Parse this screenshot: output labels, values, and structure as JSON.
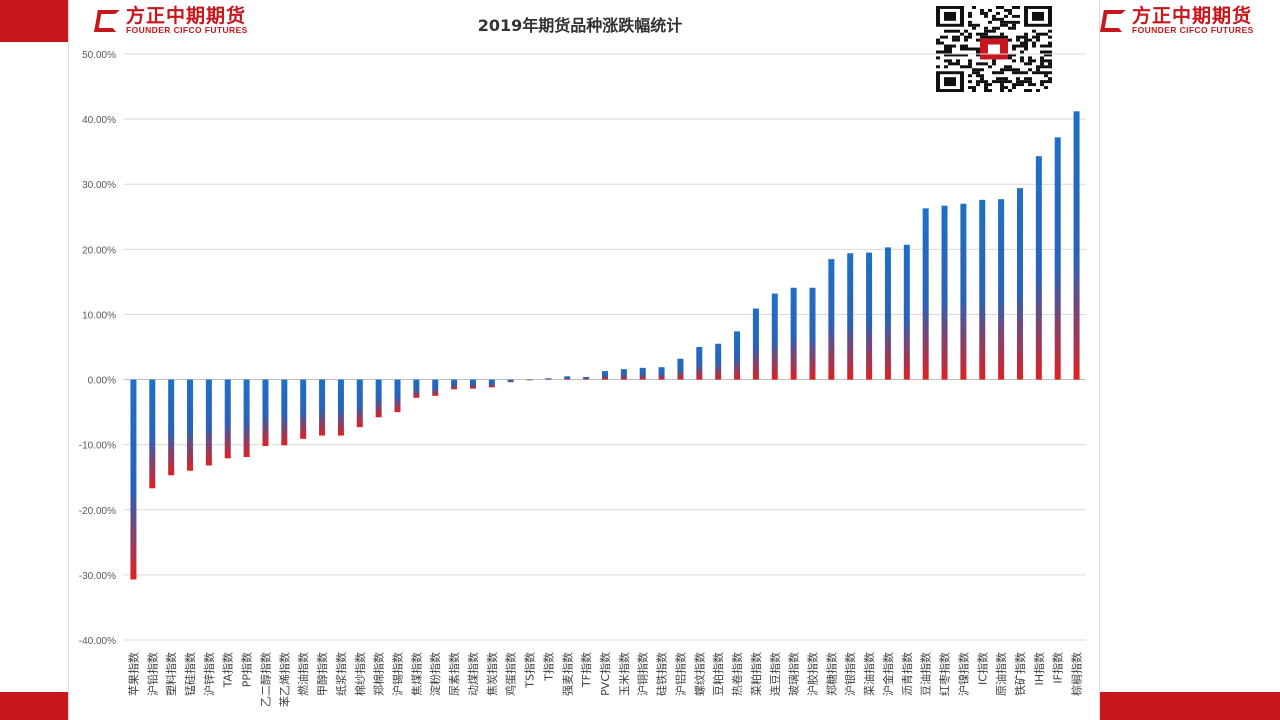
{
  "brand": {
    "name_cn": "方正中期期货",
    "name_en": "FOUNDER CIFCO FUTURES",
    "color": "#c8161d"
  },
  "qr_code": {
    "icon": "qr-code-icon"
  },
  "chart_data": {
    "type": "bar",
    "title": "2019年期货品种涨跌幅统计",
    "xlabel": "",
    "ylabel": "",
    "ylim": [
      -0.4,
      0.5
    ],
    "yticks": [
      0.5,
      0.4,
      0.3,
      0.2,
      0.1,
      0.0,
      -0.1,
      -0.2,
      -0.3,
      -0.4
    ],
    "ytick_labels": [
      "50.00%",
      "40.00%",
      "30.00%",
      "20.00%",
      "10.00%",
      "0.00%",
      "-10.00%",
      "-20.00%",
      "-30.00%",
      "-40.00%"
    ],
    "grid": true,
    "gradient_colors": {
      "positive_top": "#1f6fc6",
      "positive_base": "#e02020",
      "negative_top": "#1f6fc6",
      "negative_end": "#e02020"
    },
    "categories": [
      "苹果指数",
      "沪铅指数",
      "塑料指数",
      "锰硅指数",
      "沪锌指数",
      "TA指数",
      "PP指数",
      "乙二醇指数",
      "苯乙烯指数",
      "燃油指数",
      "甲醇指数",
      "纸浆指数",
      "棉纱指数",
      "郑棉指数",
      "沪锡指数",
      "焦煤指数",
      "淀粉指数",
      "尿素指数",
      "动煤指数",
      "焦炭指数",
      "鸡蛋指数",
      "TS指数",
      "T指数",
      "强麦指数",
      "TF指数",
      "PVC指数",
      "玉米指数",
      "沪铜指数",
      "硅铁指数",
      "沪铝指数",
      "螺纹指数",
      "豆粕指数",
      "热卷指数",
      "菜粕指数",
      "连豆指数",
      "玻璃指数",
      "沪胶指数",
      "郑糖指数",
      "沪银指数",
      "菜油指数",
      "沪金指数",
      "沥青指数",
      "豆油指数",
      "红枣指数",
      "沪镍指数",
      "IC指数",
      "原油指数",
      "铁矿指数",
      "IH指数",
      "IF指数",
      "棕榈指数"
    ],
    "values": [
      -0.307,
      -0.167,
      -0.147,
      -0.14,
      -0.132,
      -0.121,
      -0.119,
      -0.102,
      -0.101,
      -0.091,
      -0.086,
      -0.086,
      -0.073,
      -0.058,
      -0.05,
      -0.028,
      -0.025,
      -0.015,
      -0.014,
      -0.012,
      -0.004,
      0.0,
      0.002,
      0.005,
      0.004,
      0.013,
      0.016,
      0.018,
      0.019,
      0.032,
      0.05,
      0.055,
      0.074,
      0.109,
      0.132,
      0.141,
      0.141,
      0.185,
      0.194,
      0.195,
      0.203,
      0.207,
      0.263,
      0.267,
      0.27,
      0.276,
      0.277,
      0.294,
      0.343,
      0.372,
      0.412
    ]
  }
}
